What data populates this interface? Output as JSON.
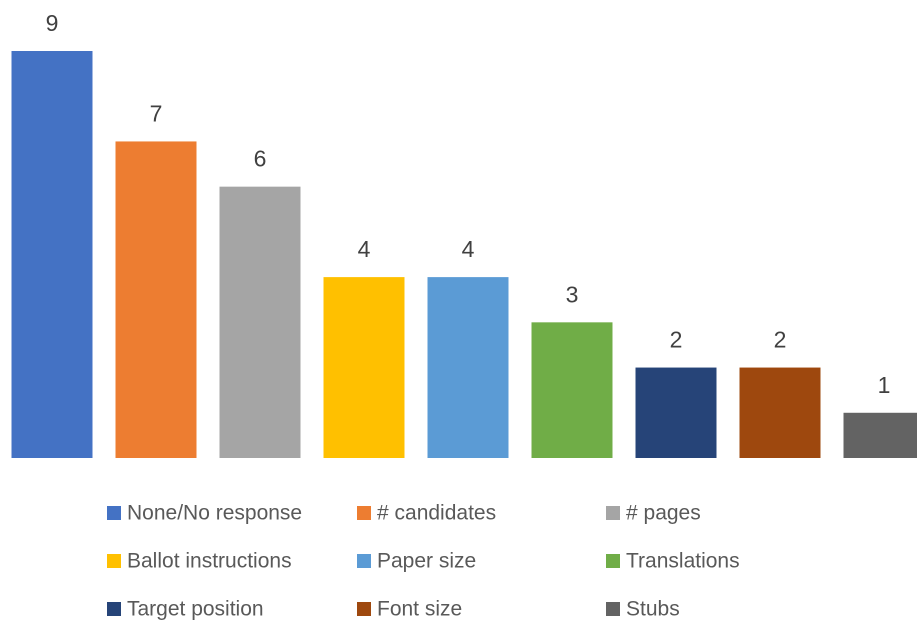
{
  "chart_data": {
    "type": "bar",
    "categories": [
      "None/No response",
      "# candidates",
      "# pages",
      "Ballot instructions",
      "Paper size",
      "Translations",
      "Target position",
      "Font size",
      "Stubs"
    ],
    "values": [
      9,
      7,
      6,
      4,
      4,
      3,
      2,
      2,
      1
    ],
    "colors": [
      "#4472c4",
      "#ed7d31",
      "#a5a5a5",
      "#ffc000",
      "#5b9bd5",
      "#70ad47",
      "#264478",
      "#9e480e",
      "#636363"
    ],
    "legend": "bottom"
  }
}
